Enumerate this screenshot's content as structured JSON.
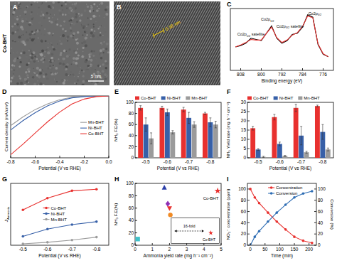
{
  "images": [
    {
      "title": "A",
      "label": "Co-BHT",
      "scale_bar": "5 nm"
    },
    {
      "title": "B",
      "annotation": "0.36 nm"
    }
  ],
  "chart_data": [
    {
      "type": "line",
      "title": "C",
      "xlabel": "Binding energy (eV)",
      "x": [
        810,
        808,
        806,
        804,
        802,
        800,
        798,
        796,
        794,
        792,
        790,
        788,
        786,
        784,
        782,
        780,
        778,
        776,
        774
      ],
      "xlim": [
        812,
        772
      ],
      "xticks": [
        808,
        800,
        792,
        784,
        776
      ],
      "ylim": [
        0,
        100
      ],
      "tick_labels": "x",
      "series": [
        {
          "color": "#000000",
          "values": [
            38,
            40,
            44,
            52,
            50,
            48,
            60,
            72,
            52,
            44,
            48,
            58,
            60,
            70,
            90,
            86,
            42,
            26,
            22
          ]
        },
        {
          "color": "#e8312f",
          "values": [
            38,
            41,
            45,
            50,
            49,
            49,
            60,
            70,
            53,
            45,
            49,
            57,
            61,
            71,
            88,
            85,
            43,
            27,
            22
          ]
        }
      ],
      "annotations": [
        "Co2p1/2 satellite",
        "Co2p1/2",
        "Co2p3/2 satellite",
        "Co2p3/2"
      ]
    },
    {
      "type": "line",
      "title": "D",
      "xlabel": "Potential (V vs RHE)",
      "ylabel": "Current density (mA/cm²)",
      "x": [
        -0.8,
        -0.7,
        -0.6,
        -0.5,
        -0.4,
        -0.3,
        -0.2,
        -0.1,
        0
      ],
      "xlim": [
        -0.8,
        0
      ],
      "xticks": [
        -0.8,
        -0.6,
        -0.4,
        -0.2,
        {
          "value": 0,
          "label": "0.0"
        }
      ],
      "ylim": [
        -100,
        0
      ],
      "tick_labels": "x",
      "legend": "right",
      "series": [
        {
          "name": "Mn-BHT",
          "color": "#9b9b9b",
          "values": [
            -48,
            -34,
            -22,
            -13,
            -6,
            -2,
            -0.5,
            0,
            0
          ]
        },
        {
          "name": "Ni-BHT",
          "color": "#3760a8",
          "values": [
            -55,
            -40,
            -27,
            -16,
            -8,
            -3,
            -1,
            0,
            0
          ]
        },
        {
          "name": "Co-BHT",
          "color": "#e8312f",
          "values": [
            -95,
            -78,
            -60,
            -42,
            -26,
            -13,
            -5,
            -1,
            0
          ]
        }
      ]
    },
    {
      "type": "bar",
      "title": "E",
      "xlabel": "Potential (V vs RHE)",
      "ylabel": "NH₃ F.E(%)",
      "categories": [
        "-0.5",
        "-0.6",
        "-0.7",
        "-0.8"
      ],
      "ylim": [
        0,
        100
      ],
      "yticks": [
        0,
        20,
        40,
        60,
        80,
        100
      ],
      "legend": "top",
      "series": [
        {
          "name": "Co-BHT",
          "color": "#e8312f",
          "values": [
            90,
            90,
            87,
            80
          ],
          "errors": [
            4,
            3,
            4,
            2
          ]
        },
        {
          "name": "Ni-BHT",
          "color": "#3760a8",
          "values": [
            60,
            82,
            72,
            64
          ],
          "errors": [
            12,
            6,
            10,
            8
          ]
        },
        {
          "name": "Mn-BHT",
          "color": "#9b9b9b",
          "values": [
            35,
            46,
            60,
            60
          ],
          "errors": [
            10,
            3,
            5,
            6
          ]
        }
      ]
    },
    {
      "type": "bar",
      "title": "F",
      "xlabel": "Potential (V vs RHE)",
      "ylabel": "NH₃ Yield rate (mg h⁻¹ cm⁻²)",
      "categories": [
        "-0.5",
        "-0.6",
        "-0.7",
        "-0.8"
      ],
      "ylim": [
        0,
        30
      ],
      "yticks": [
        0,
        5,
        10,
        15,
        20,
        25,
        30
      ],
      "legend": "top",
      "series": [
        {
          "name": "Co-BHT",
          "color": "#e8312f",
          "values": [
            16,
            22,
            27,
            28
          ],
          "errors": [
            1,
            1.5,
            2,
            0.5
          ]
        },
        {
          "name": "Ni-BHT",
          "color": "#3760a8",
          "values": [
            4.5,
            7.5,
            12,
            14
          ],
          "errors": [
            0.5,
            1,
            5,
            4
          ]
        },
        {
          "name": "Mn-BHT",
          "color": "#9b9b9b",
          "values": [
            0.5,
            1,
            3,
            4.5
          ],
          "errors": [
            0.3,
            0.3,
            0.5,
            0.8
          ]
        }
      ]
    },
    {
      "type": "line",
      "title": "G",
      "xlabel": "Potential (V vs RHE)",
      "ylabel": "JAmmonia",
      "categories": [
        "-0.5",
        "-0.6",
        "-0.7",
        "-0.8"
      ],
      "ylim": [
        0,
        420
      ],
      "tick_labels": "x",
      "legend": "center",
      "series": [
        {
          "name": "Co-BHT",
          "color": "#e8312f",
          "marker": "circle",
          "values": [
            240,
            320,
            370,
            380
          ]
        },
        {
          "name": "Ni-BHT",
          "color": "#3760a8",
          "marker": "circle",
          "values": [
            60,
            110,
            140,
            160
          ]
        },
        {
          "name": "Mn-BHT",
          "color": "#9b9b9b",
          "marker": "circle",
          "values": [
            10,
            20,
            35,
            55
          ]
        }
      ]
    },
    {
      "type": "scatter",
      "title": "H",
      "xlabel": "Ammonia yield rate (mg h⁻¹ cm⁻²)",
      "ylabel": "NH₃ F.E(%)",
      "xlim": [
        0,
        5
      ],
      "xticks": [
        0,
        1,
        2,
        3,
        4,
        5
      ],
      "ylim": [
        0,
        100
      ],
      "yticks": [
        0,
        20,
        40,
        60,
        80,
        100
      ],
      "series": [
        {
          "color": "#3fc1c9",
          "marker": "square",
          "x": [
            0.15
          ],
          "values": [
            10
          ]
        },
        {
          "color": "#2b3ea8",
          "marker": "triangle",
          "x": [
            1.7
          ],
          "values": [
            93
          ]
        },
        {
          "color": "#8e2fb5",
          "marker": "diamond",
          "x": [
            1.9
          ],
          "values": [
            67
          ]
        },
        {
          "color": "#e8312f",
          "marker": "triangle-down",
          "x": [
            2.0
          ],
          "values": [
            60
          ]
        },
        {
          "color": "#f08a24",
          "marker": "circle",
          "x": [
            2.05
          ],
          "values": [
            49
          ]
        },
        {
          "color": "#e8312f",
          "marker": "star",
          "x": [
            4.8
          ],
          "values": [
            88
          ]
        }
      ],
      "annotations": [
        "Co-BHT",
        "16-fold",
        "Co-BHT"
      ]
    },
    {
      "type": "line",
      "title": "I",
      "xlabel": "Time (min)",
      "ylabel": "NO₃⁻ concentration (ppm)",
      "y2label": "Conversion (%)",
      "x": [
        0,
        15,
        30,
        60,
        90,
        120,
        150,
        180,
        210
      ],
      "xlim": [
        -10,
        225
      ],
      "xticks": [
        0,
        50,
        100,
        150,
        200
      ],
      "ylim": [
        0,
        110
      ],
      "yticks": [
        0,
        20,
        40,
        60,
        80,
        100
      ],
      "y2lim": [
        0,
        110
      ],
      "y2ticks": [
        0,
        20,
        40,
        60,
        80,
        100
      ],
      "legend": "upper center",
      "series": [
        {
          "name": "Concentration",
          "color": "#e8312f",
          "marker": "circle",
          "values": [
            100,
            85,
            75,
            58,
            42,
            28,
            15,
            8,
            4
          ]
        },
        {
          "name": "Conversion",
          "color": "#2e6db4",
          "marker": "circle",
          "axis": "y2",
          "values": [
            0,
            15,
            25,
            42,
            58,
            72,
            85,
            92,
            96
          ]
        }
      ]
    }
  ]
}
